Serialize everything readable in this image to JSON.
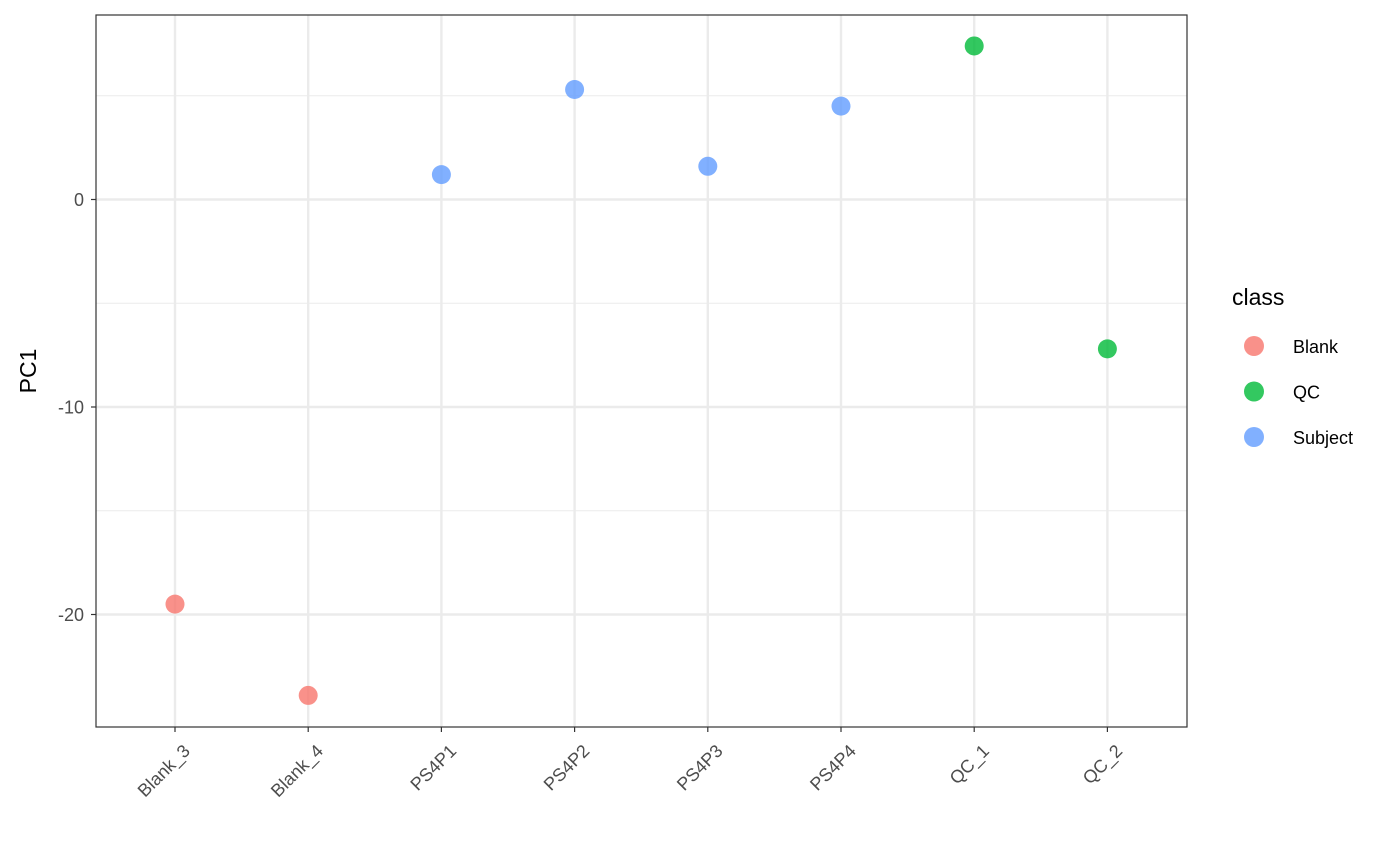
{
  "chart_data": {
    "type": "scatter",
    "x_categories": [
      "Blank_3",
      "Blank_4",
      "PS4P1",
      "PS4P2",
      "PS4P3",
      "PS4P4",
      "QC_1",
      "QC_2"
    ],
    "ylabel": "PC1",
    "xlabel": "",
    "ylim": [
      -25.5,
      8.9
    ],
    "y_ticks": [
      0,
      -10,
      -20
    ],
    "y_tick_labels": [
      "0",
      "-10",
      "-20"
    ],
    "grid": true,
    "legend": {
      "title": "class",
      "placement": "right",
      "entries": [
        {
          "label": "Blank",
          "color": "#F8766D"
        },
        {
          "label": "QC",
          "color": "#00BA38"
        },
        {
          "label": "Subject",
          "color": "#619CFF"
        }
      ]
    },
    "points": [
      {
        "x": "Blank_3",
        "y": -19.5,
        "class": "Blank"
      },
      {
        "x": "Blank_4",
        "y": -23.9,
        "class": "Blank"
      },
      {
        "x": "PS4P1",
        "y": 1.2,
        "class": "Subject"
      },
      {
        "x": "PS4P2",
        "y": 5.3,
        "class": "Subject"
      },
      {
        "x": "PS4P3",
        "y": 1.6,
        "class": "Subject"
      },
      {
        "x": "PS4P4",
        "y": 4.5,
        "class": "Subject"
      },
      {
        "x": "QC_1",
        "y": 7.4,
        "class": "QC"
      },
      {
        "x": "QC_2",
        "y": -7.2,
        "class": "QC"
      }
    ]
  }
}
